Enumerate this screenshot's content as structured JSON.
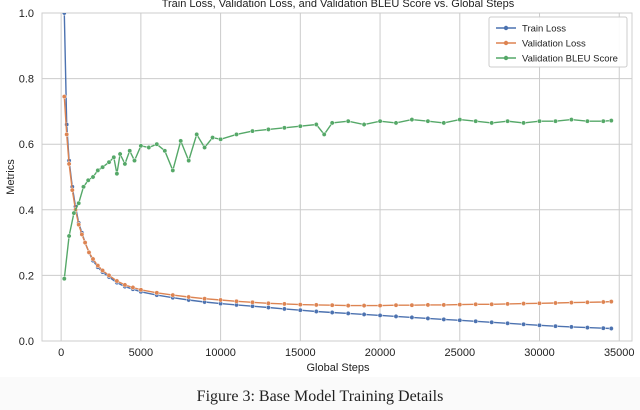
{
  "figure_caption": "Figure 3: Base Model Training Details",
  "chart_data": {
    "type": "line",
    "title": "Train Loss, Validation Loss, and Validation BLEU Score vs. Global Steps",
    "xlabel": "Global Steps",
    "ylabel": "Metrics",
    "xlim": [
      -1200,
      35800
    ],
    "ylim": [
      0,
      1.0
    ],
    "xticks": [
      0,
      5000,
      10000,
      15000,
      20000,
      25000,
      30000,
      35000
    ],
    "xtick_labels": [
      "0",
      "5000",
      "10000",
      "15000",
      "20000",
      "25000",
      "30000",
      "35000"
    ],
    "yticks": [
      0.0,
      0.2,
      0.4,
      0.6,
      0.8,
      1.0
    ],
    "ytick_labels": [
      "0.0",
      "0.2",
      "0.4",
      "0.6",
      "0.8",
      "1.0"
    ],
    "grid": true,
    "legend_position": "top-right",
    "series": [
      {
        "name": "Train Loss",
        "color": "#4c72b0",
        "x": [
          200,
          350,
          500,
          700,
          900,
          1100,
          1300,
          1500,
          1750,
          2000,
          2300,
          2600,
          3000,
          3500,
          4000,
          4500,
          5000,
          6000,
          7000,
          8000,
          9000,
          10000,
          11000,
          12000,
          13000,
          14000,
          15000,
          16000,
          17000,
          18000,
          19000,
          20000,
          21000,
          22000,
          23000,
          24000,
          25000,
          26000,
          27000,
          28000,
          29000,
          30000,
          31000,
          32000,
          33000,
          34000,
          34500
        ],
        "values": [
          1.0,
          0.66,
          0.55,
          0.47,
          0.41,
          0.36,
          0.33,
          0.3,
          0.27,
          0.245,
          0.225,
          0.21,
          0.195,
          0.178,
          0.166,
          0.158,
          0.15,
          0.14,
          0.132,
          0.125,
          0.119,
          0.114,
          0.11,
          0.106,
          0.102,
          0.098,
          0.094,
          0.09,
          0.087,
          0.084,
          0.081,
          0.078,
          0.075,
          0.072,
          0.069,
          0.066,
          0.063,
          0.06,
          0.057,
          0.054,
          0.051,
          0.048,
          0.045,
          0.043,
          0.041,
          0.039,
          0.038
        ]
      },
      {
        "name": "Validation Loss",
        "color": "#dd8452",
        "x": [
          200,
          350,
          500,
          700,
          900,
          1100,
          1300,
          1500,
          1750,
          2000,
          2300,
          2600,
          3000,
          3500,
          4000,
          4500,
          5000,
          6000,
          7000,
          8000,
          9000,
          10000,
          11000,
          12000,
          13000,
          14000,
          15000,
          16000,
          17000,
          18000,
          19000,
          20000,
          21000,
          22000,
          23000,
          24000,
          25000,
          26000,
          27000,
          28000,
          29000,
          30000,
          31000,
          32000,
          33000,
          34000,
          34500
        ],
        "values": [
          0.745,
          0.63,
          0.54,
          0.46,
          0.4,
          0.355,
          0.325,
          0.3,
          0.27,
          0.25,
          0.23,
          0.215,
          0.2,
          0.183,
          0.171,
          0.163,
          0.156,
          0.147,
          0.14,
          0.134,
          0.129,
          0.125,
          0.121,
          0.118,
          0.115,
          0.113,
          0.111,
          0.11,
          0.109,
          0.108,
          0.108,
          0.108,
          0.109,
          0.109,
          0.11,
          0.11,
          0.111,
          0.112,
          0.112,
          0.113,
          0.114,
          0.115,
          0.116,
          0.117,
          0.118,
          0.119,
          0.12
        ]
      },
      {
        "name": "Validation BLEU Score",
        "color": "#55a868",
        "x": [
          200,
          500,
          800,
          1100,
          1400,
          1700,
          2000,
          2300,
          2600,
          3000,
          3300,
          3500,
          3700,
          4000,
          4300,
          4600,
          5000,
          5500,
          6000,
          6500,
          7000,
          7500,
          8000,
          8500,
          9000,
          9500,
          10000,
          11000,
          12000,
          13000,
          14000,
          15000,
          16000,
          16500,
          17000,
          18000,
          19000,
          20000,
          21000,
          22000,
          23000,
          24000,
          25000,
          26000,
          27000,
          28000,
          29000,
          30000,
          31000,
          32000,
          33000,
          34000,
          34500
        ],
        "values": [
          0.19,
          0.32,
          0.39,
          0.42,
          0.47,
          0.49,
          0.5,
          0.52,
          0.53,
          0.545,
          0.56,
          0.51,
          0.57,
          0.54,
          0.58,
          0.55,
          0.595,
          0.59,
          0.6,
          0.58,
          0.52,
          0.61,
          0.55,
          0.63,
          0.59,
          0.62,
          0.615,
          0.63,
          0.64,
          0.645,
          0.65,
          0.655,
          0.66,
          0.63,
          0.665,
          0.67,
          0.66,
          0.67,
          0.665,
          0.675,
          0.67,
          0.665,
          0.675,
          0.67,
          0.665,
          0.67,
          0.665,
          0.67,
          0.67,
          0.675,
          0.67,
          0.67,
          0.672
        ]
      }
    ]
  }
}
